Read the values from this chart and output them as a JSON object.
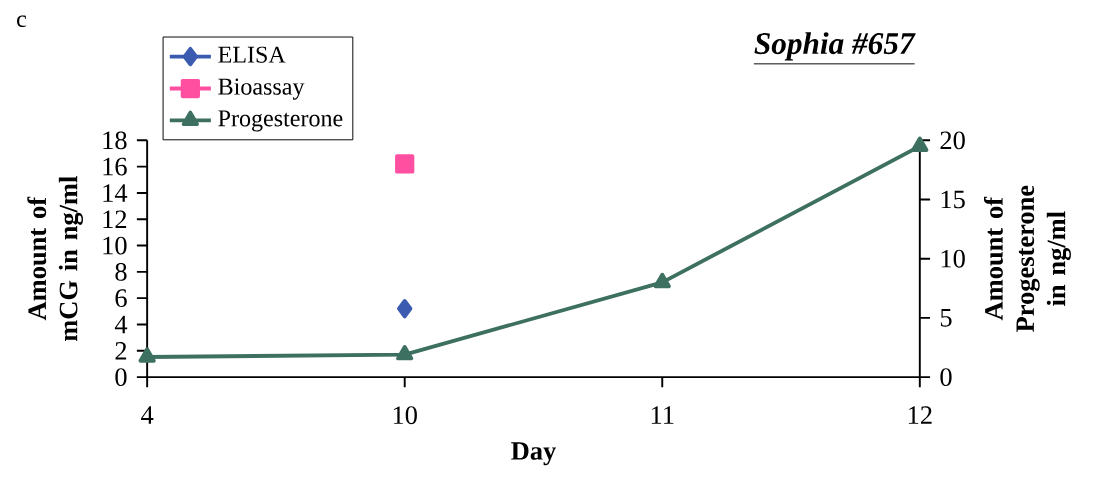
{
  "chart_data": {
    "type": "line",
    "title": "Sophia #657",
    "xlabel": "Day",
    "ylabel": "Amount of mCG in ng/ml",
    "y2label": "Amount of Progesterone in ng/ml",
    "annotations": [
      "c"
    ],
    "categories": [
      "4",
      "10",
      "11",
      "12"
    ],
    "series": [
      {
        "name": "ELISA",
        "color": "#3a5bb0",
        "marker": "diamond",
        "values": [
          null,
          5.2,
          null,
          null
        ]
      },
      {
        "name": "Bioassay",
        "color": "#ff4fa0",
        "marker": "square",
        "values": [
          null,
          16.2,
          null,
          null
        ]
      },
      {
        "name": "Progesterone",
        "color": "#3d7060",
        "marker": "triangle",
        "axis": "y2",
        "values": [
          1.7,
          1.9,
          8.0,
          19.5
        ]
      }
    ],
    "ylim": [
      0,
      18
    ],
    "yticks": [
      0,
      2,
      4,
      6,
      8,
      10,
      12,
      14,
      16,
      18
    ],
    "y2lim": [
      0,
      20
    ],
    "y2ticks": [
      0,
      5,
      10,
      15,
      20
    ],
    "legend": "top left",
    "line_style": "solid"
  }
}
